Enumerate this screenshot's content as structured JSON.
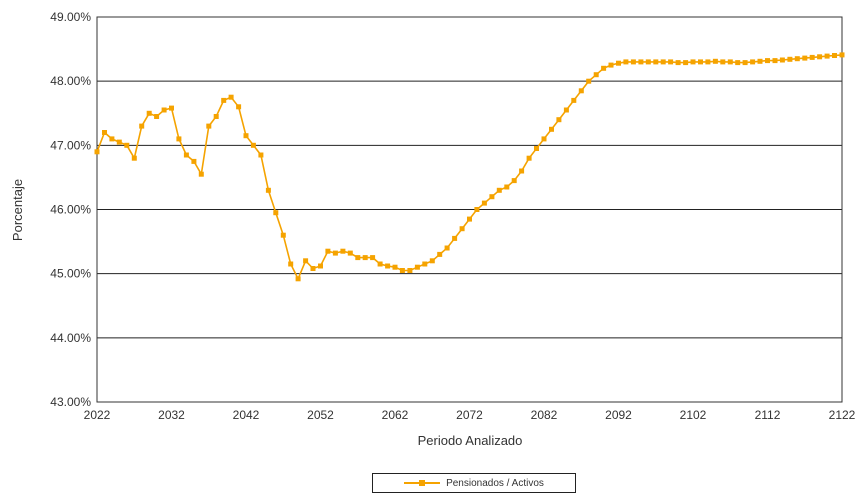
{
  "chart_data": {
    "type": "line",
    "title": "",
    "xlabel": "Periodo Analizado",
    "ylabel": "Porcentaje",
    "xlim": [
      2022,
      2122
    ],
    "ylim": [
      43.0,
      49.0
    ],
    "x_ticks": [
      2022,
      2032,
      2042,
      2052,
      2062,
      2072,
      2082,
      2092,
      2102,
      2112,
      2122
    ],
    "y_ticks": [
      43.0,
      44.0,
      45.0,
      46.0,
      47.0,
      48.0,
      49.0
    ],
    "y_tick_labels": [
      "43.00%",
      "44.00%",
      "45.00%",
      "46.00%",
      "47.00%",
      "48.00%",
      "49.00%"
    ],
    "grid": "horizontal",
    "legend_position": "bottom",
    "series": [
      {
        "name": "Pensionados / Activos",
        "color": "#f5a300",
        "x": [
          2022,
          2023,
          2024,
          2025,
          2026,
          2027,
          2028,
          2029,
          2030,
          2031,
          2032,
          2033,
          2034,
          2035,
          2036,
          2037,
          2038,
          2039,
          2040,
          2041,
          2042,
          2043,
          2044,
          2045,
          2046,
          2047,
          2048,
          2049,
          2050,
          2051,
          2052,
          2053,
          2054,
          2055,
          2056,
          2057,
          2058,
          2059,
          2060,
          2061,
          2062,
          2063,
          2064,
          2065,
          2066,
          2067,
          2068,
          2069,
          2070,
          2071,
          2072,
          2073,
          2074,
          2075,
          2076,
          2077,
          2078,
          2079,
          2080,
          2081,
          2082,
          2083,
          2084,
          2085,
          2086,
          2087,
          2088,
          2089,
          2090,
          2091,
          2092,
          2093,
          2094,
          2095,
          2096,
          2097,
          2098,
          2099,
          2100,
          2101,
          2102,
          2103,
          2104,
          2105,
          2106,
          2107,
          2108,
          2109,
          2110,
          2111,
          2112,
          2113,
          2114,
          2115,
          2116,
          2117,
          2118,
          2119,
          2120,
          2121,
          2122
        ],
        "values": [
          46.9,
          47.2,
          47.1,
          47.05,
          47.0,
          46.8,
          47.3,
          47.5,
          47.45,
          47.55,
          47.58,
          47.1,
          46.85,
          46.75,
          46.55,
          47.3,
          47.45,
          47.7,
          47.75,
          47.6,
          47.15,
          47.0,
          46.85,
          46.3,
          45.95,
          45.6,
          45.15,
          44.92,
          45.2,
          45.08,
          45.12,
          45.35,
          45.32,
          45.35,
          45.32,
          45.25,
          45.25,
          45.25,
          45.15,
          45.12,
          45.1,
          45.05,
          45.05,
          45.1,
          45.15,
          45.2,
          45.3,
          45.4,
          45.55,
          45.7,
          45.85,
          46.0,
          46.1,
          46.2,
          46.3,
          46.35,
          46.45,
          46.6,
          46.8,
          46.95,
          47.1,
          47.25,
          47.4,
          47.55,
          47.7,
          47.85,
          48.0,
          48.1,
          48.2,
          48.25,
          48.28,
          48.3,
          48.3,
          48.3,
          48.3,
          48.3,
          48.3,
          48.3,
          48.29,
          48.29,
          48.3,
          48.3,
          48.3,
          48.31,
          48.3,
          48.3,
          48.29,
          48.29,
          48.3,
          48.31,
          48.32,
          48.32,
          48.33,
          48.34,
          48.35,
          48.36,
          48.37,
          48.38,
          48.39,
          48.4,
          48.41
        ]
      }
    ]
  }
}
